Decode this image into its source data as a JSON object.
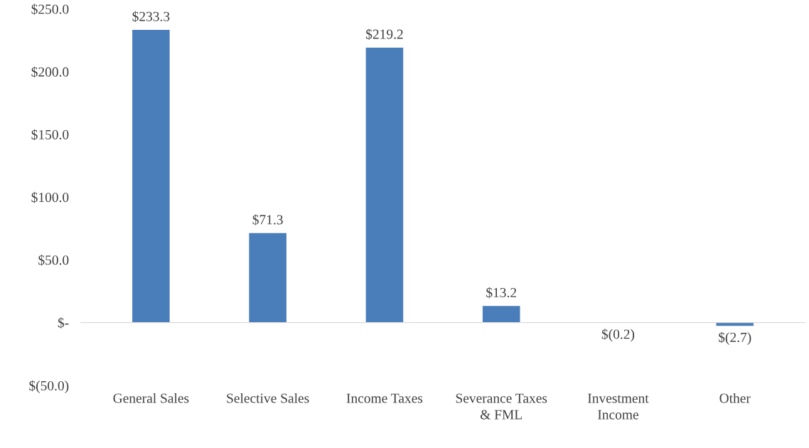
{
  "chart_data": {
    "type": "bar",
    "categories": [
      "General Sales",
      "Selective Sales",
      "Income Taxes",
      "Severance Taxes\n& FML",
      "Investment\nIncome",
      "Other"
    ],
    "values": [
      233.3,
      71.3,
      219.2,
      13.2,
      -0.2,
      -2.7
    ],
    "value_labels": [
      "$233.3",
      "$71.3",
      "$219.2",
      "$13.2",
      "$(0.2)",
      "$(2.7)"
    ],
    "color": "#4a7ebb",
    "ylim": [
      -50,
      250
    ],
    "yticks": [
      {
        "value": -50,
        "label": "$(50.0)"
      },
      {
        "value": 0,
        "label": "$-"
      },
      {
        "value": 50,
        "label": "$50.0"
      },
      {
        "value": 100,
        "label": "$100.0"
      },
      {
        "value": 150,
        "label": "$150.0"
      },
      {
        "value": 200,
        "label": "$200.0"
      },
      {
        "value": 250,
        "label": "$250.0"
      }
    ],
    "legend": false
  }
}
